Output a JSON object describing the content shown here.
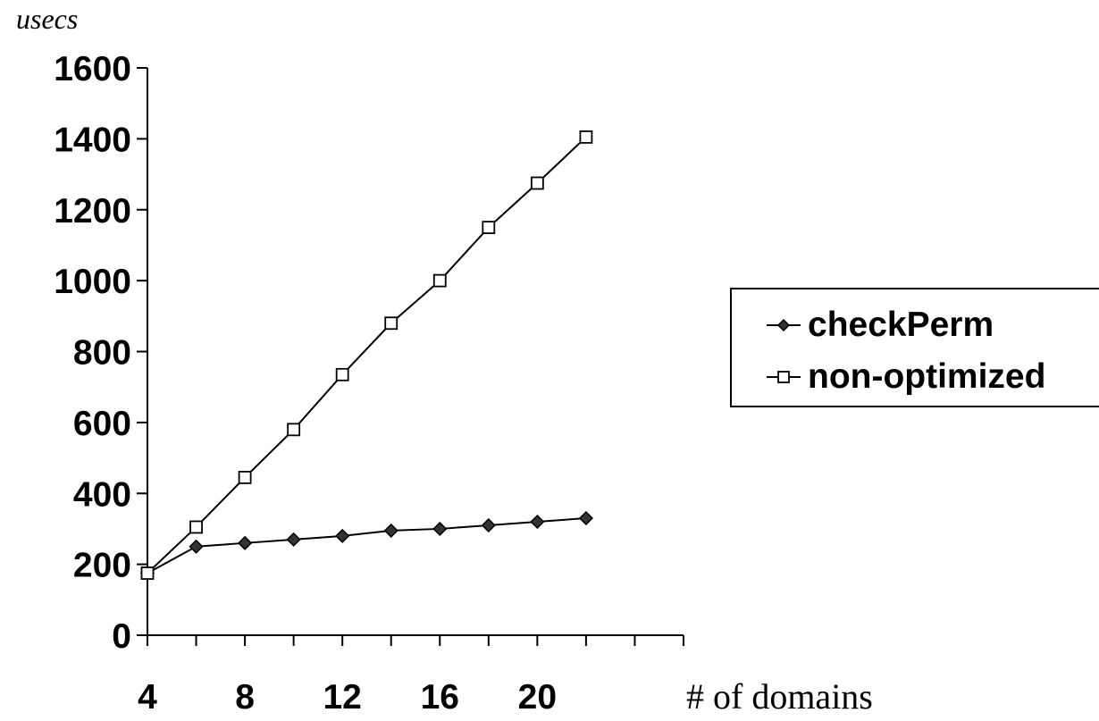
{
  "chart_data": {
    "type": "line",
    "title": "",
    "ylabel": "usecs",
    "xlabel": "# of domains",
    "ylim": [
      0,
      1600
    ],
    "xlim": [
      4,
      26
    ],
    "y_ticks": [
      "0",
      "200",
      "400",
      "600",
      "800",
      "1000",
      "1200",
      "1400",
      "1600"
    ],
    "x_tick_labels": [
      "4",
      "8",
      "12",
      "16",
      "20"
    ],
    "x_tick_label_values": [
      4,
      8,
      12,
      16,
      20
    ],
    "x_minor_ticks": [
      4,
      6,
      8,
      10,
      12,
      14,
      16,
      18,
      20,
      22,
      24,
      26
    ],
    "grid": false,
    "legend_position": "right",
    "x": [
      4,
      6,
      8,
      10,
      12,
      14,
      16,
      18,
      20,
      22
    ],
    "series": [
      {
        "name": "checkPerm",
        "marker": "diamond",
        "color": "#000000",
        "fill": "#333333",
        "values": [
          175,
          250,
          260,
          270,
          280,
          295,
          300,
          310,
          320,
          330
        ]
      },
      {
        "name": "non-optimized",
        "marker": "square",
        "color": "#000000",
        "fill": "#ffffff",
        "values": [
          175,
          305,
          445,
          580,
          735,
          880,
          1000,
          1150,
          1275,
          1405
        ]
      }
    ]
  }
}
